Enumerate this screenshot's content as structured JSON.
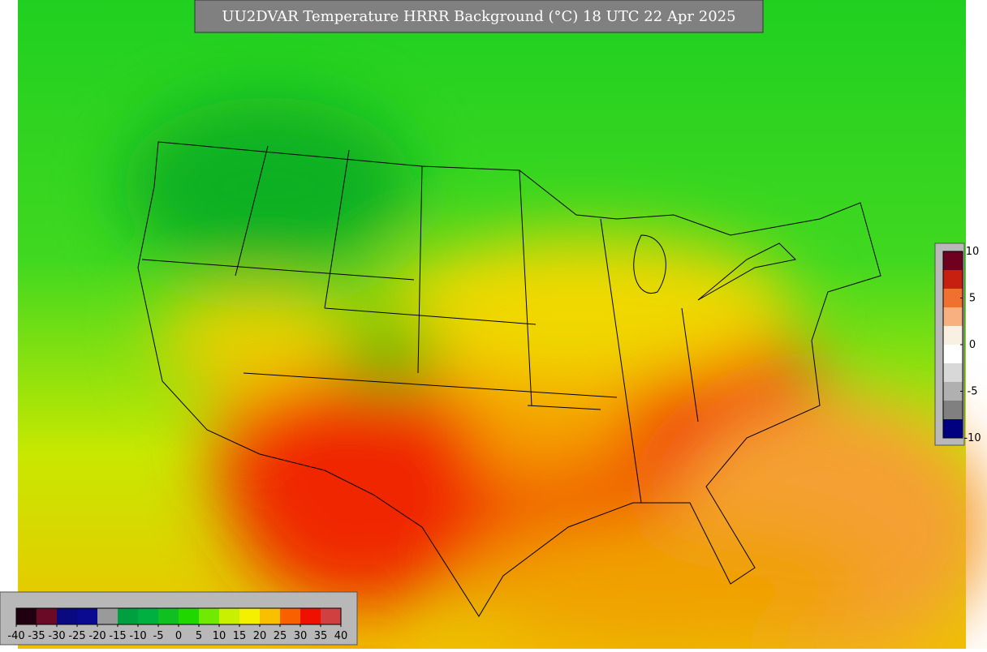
{
  "title": "UU2DVAR Temperature HRRR Background (°C) 18 UTC 22 Apr 2025",
  "colorbar_bottom": {
    "ticks": [
      -40,
      -35,
      -30,
      -25,
      -20,
      -15,
      -10,
      -5,
      0,
      5,
      10,
      15,
      20,
      25,
      30,
      35,
      40
    ],
    "colors": [
      "#200010",
      "#6b0a26",
      "#0a0a80",
      "#0a0a90",
      "#9a9a9a",
      "#00a040",
      "#00b040",
      "#10c020",
      "#20d800",
      "#70ea00",
      "#c8f000",
      "#f4f000",
      "#f8c000",
      "#f86000",
      "#f01000",
      "#d04040"
    ]
  },
  "colorbar_right": {
    "ticks": [
      10,
      5,
      0,
      -5,
      -10
    ],
    "colors": [
      "#700020",
      "#c82010",
      "#f07030",
      "#f8b080",
      "#f8f0e0",
      "#ffffff",
      "#d8d8d8",
      "#b0b0b0",
      "#808080",
      "#000080"
    ]
  }
}
